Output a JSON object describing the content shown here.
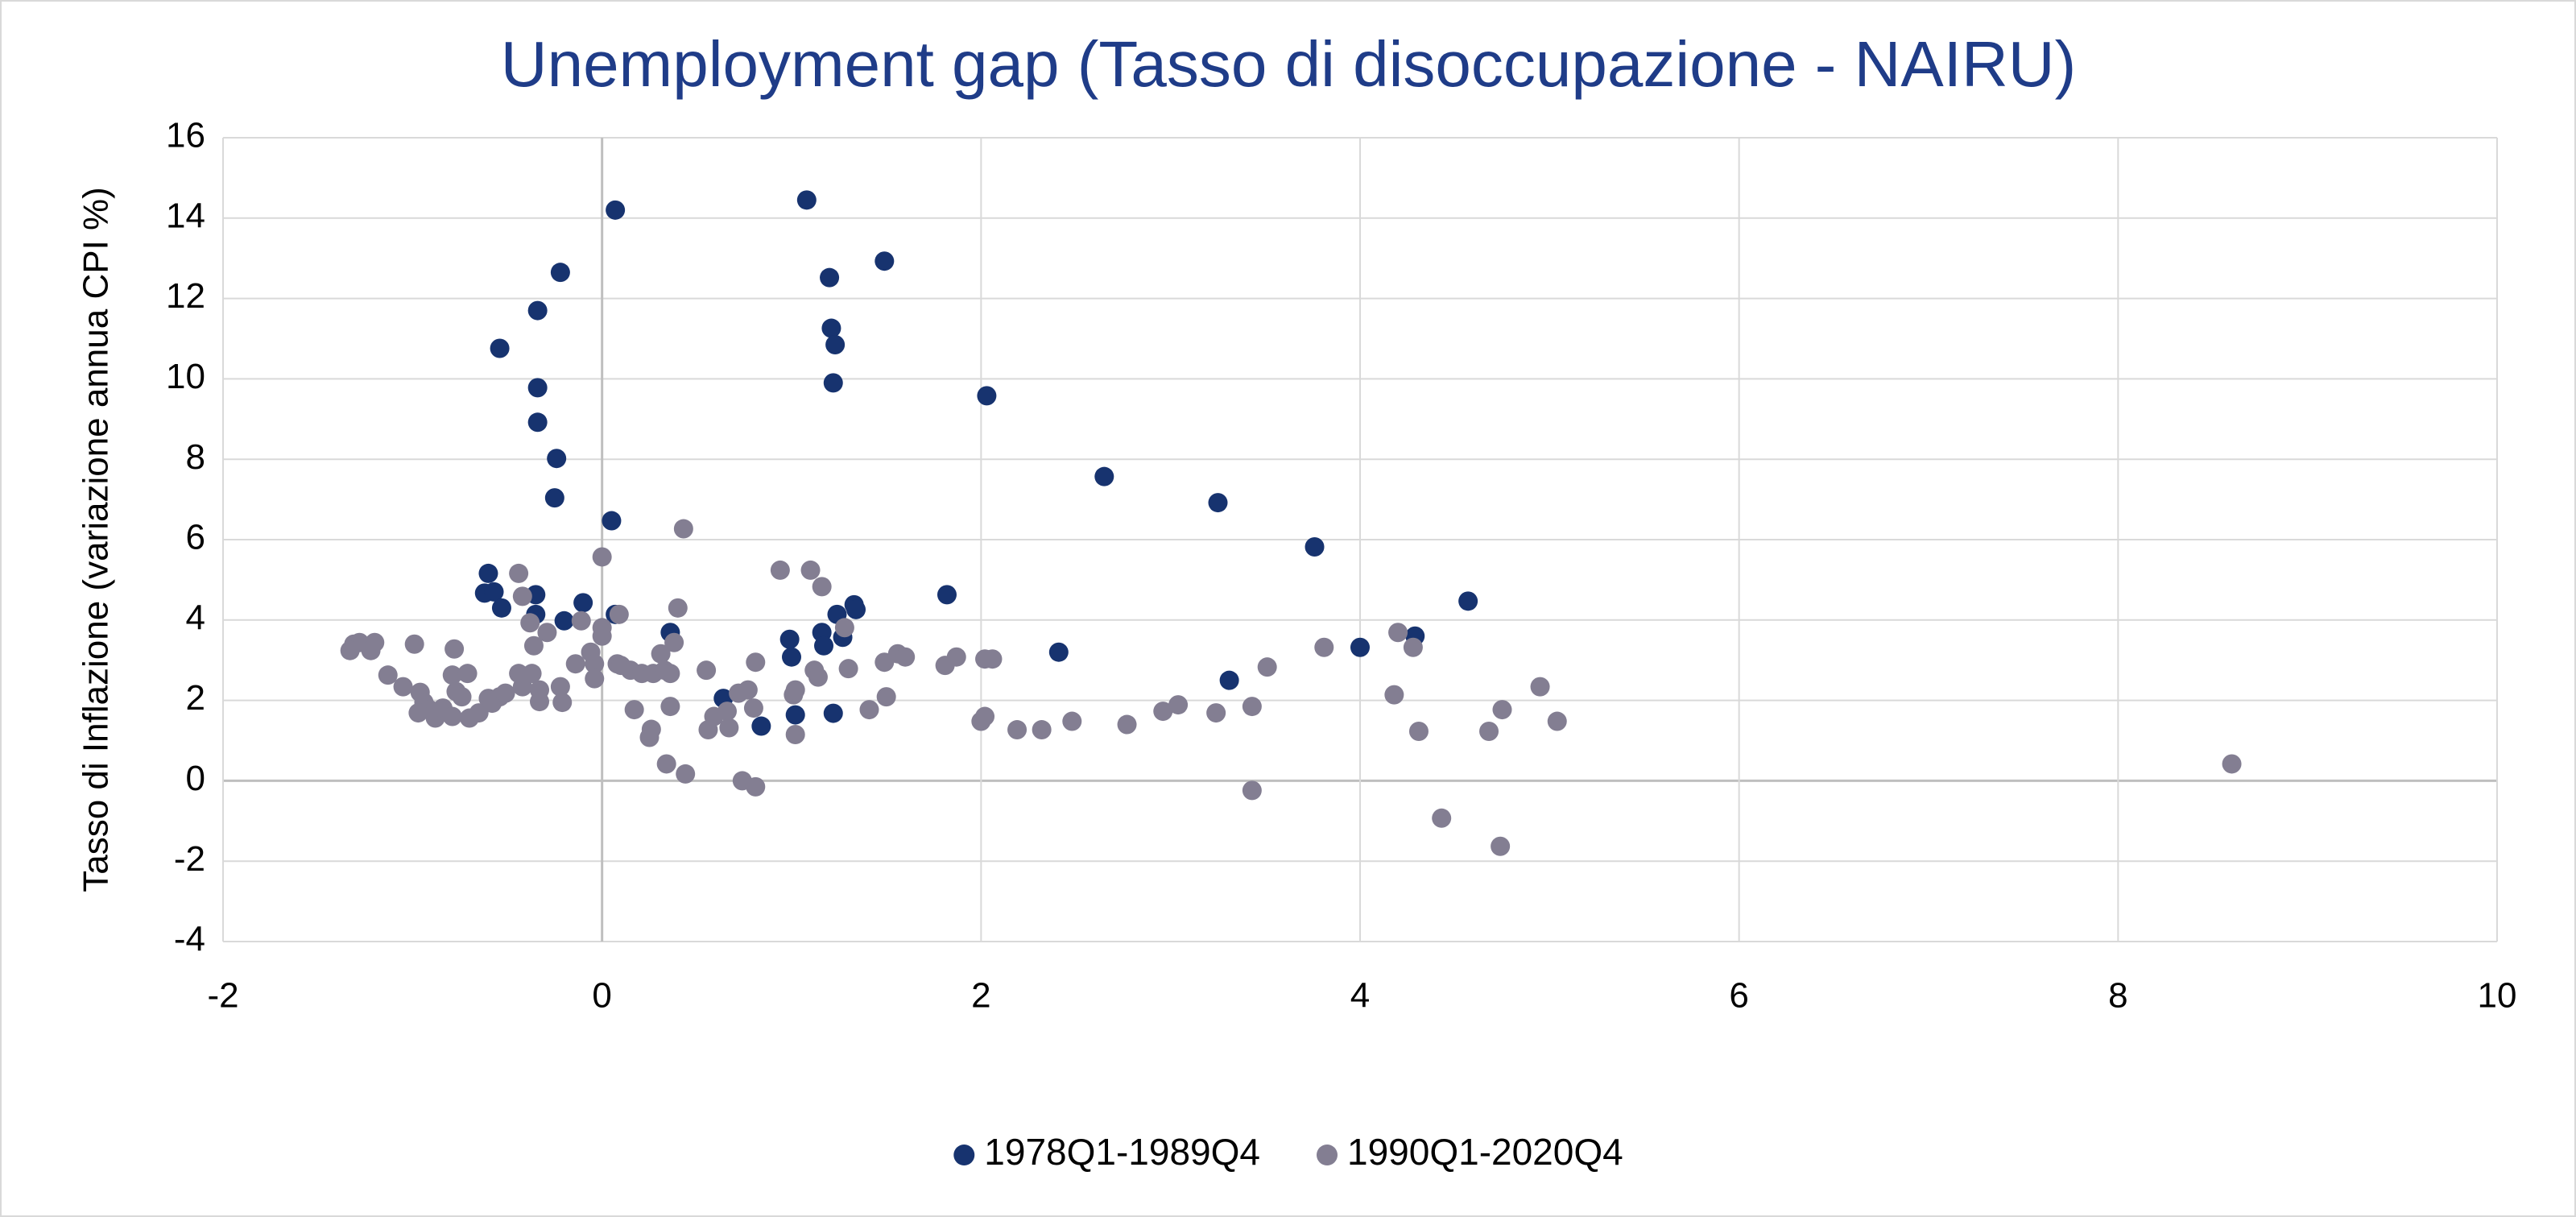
{
  "chart_data": {
    "type": "scatter",
    "title": "Unemployment gap (Tasso di disoccupazione - NAIRU)",
    "y_label": "Tasso di Inflazione (variazione annua CPI %)",
    "xlim": [
      -2,
      10
    ],
    "xticks": [
      -2,
      0,
      2,
      4,
      6,
      8,
      10
    ],
    "ylim": [
      -4,
      16
    ],
    "yticks": [
      -4,
      -2,
      0,
      2,
      4,
      6,
      8,
      10,
      12,
      14,
      16
    ],
    "grid": true,
    "legend": "bottom",
    "series": [
      {
        "name": "1978Q1-1989Q4",
        "color": "#17336f",
        "x": [
          0.07,
          1.08,
          -0.22,
          1.2,
          1.49,
          -0.34,
          1.21,
          1.23,
          -0.54,
          1.22,
          -0.34,
          2.03,
          -0.34,
          -0.24,
          -0.25,
          2.65,
          3.25,
          0.05,
          3.76,
          -0.6,
          1.82,
          4.57,
          -0.62,
          -0.57,
          -0.35,
          -0.1,
          -0.53,
          -0.35,
          0.07,
          1.33,
          1.34,
          1.24,
          -0.2,
          1.16,
          0.36,
          1.27,
          1.17,
          0.99,
          4.29,
          2.41,
          4.0,
          1.0,
          3.31,
          0.64,
          1.02,
          1.22,
          0.84
        ],
        "values": [
          14.2,
          14.45,
          12.65,
          12.52,
          12.93,
          11.7,
          11.26,
          10.85,
          10.76,
          9.9,
          9.78,
          9.58,
          8.92,
          8.02,
          7.04,
          7.57,
          6.92,
          6.47,
          5.82,
          5.16,
          4.63,
          4.47,
          4.67,
          4.7,
          4.63,
          4.43,
          4.3,
          4.14,
          4.14,
          4.38,
          4.26,
          4.14,
          3.98,
          3.69,
          3.69,
          3.57,
          3.36,
          3.52,
          3.6,
          3.2,
          3.32,
          3.08,
          2.5,
          2.05,
          1.64,
          1.68,
          1.36
        ]
      },
      {
        "name": "1990Q1-2020Q4",
        "color": "#837e92",
        "x": [
          -1.31,
          -1.28,
          -1.2,
          -1.22,
          -1.33,
          -1.13,
          -1.05,
          -0.99,
          -0.78,
          -0.96,
          -0.94,
          -0.91,
          -0.97,
          -0.88,
          -0.84,
          -0.79,
          -0.71,
          -0.77,
          -0.74,
          -0.7,
          -0.65,
          -0.79,
          -0.6,
          -0.58,
          -0.54,
          -0.51,
          -0.42,
          -0.44,
          -0.37,
          -0.44,
          -0.42,
          -0.38,
          -0.36,
          -0.29,
          -0.33,
          -0.33,
          -0.22,
          -0.21,
          -0.14,
          -0.11,
          -0.06,
          -0.04,
          -0.04,
          0.0,
          0.0,
          0.0,
          0.08,
          0.09,
          0.1,
          0.15,
          0.17,
          0.21,
          0.25,
          0.26,
          0.27,
          0.31,
          0.33,
          0.34,
          0.36,
          0.36,
          0.38,
          0.4,
          0.43,
          0.44,
          0.56,
          0.55,
          0.59,
          0.66,
          0.67,
          0.72,
          0.74,
          0.77,
          0.8,
          0.81,
          0.81,
          0.94,
          1.01,
          1.02,
          1.02,
          1.1,
          1.12,
          1.14,
          1.16,
          1.28,
          1.3,
          1.41,
          1.5,
          1.49,
          1.56,
          1.6,
          1.81,
          1.87,
          2.0,
          2.02,
          2.02,
          2.06,
          2.19,
          2.32,
          2.48,
          2.77,
          2.96,
          3.04,
          3.24,
          3.43,
          3.43,
          3.51,
          3.81,
          4.18,
          4.2,
          4.28,
          4.31,
          4.43,
          4.68,
          4.75,
          4.74,
          4.95,
          5.04,
          8.6
        ],
        "values": [
          3.4,
          3.44,
          3.44,
          3.24,
          3.24,
          2.63,
          2.34,
          3.4,
          3.28,
          2.2,
          1.95,
          1.77,
          1.69,
          1.56,
          1.81,
          2.63,
          2.67,
          2.22,
          2.09,
          1.56,
          1.69,
          1.6,
          2.05,
          1.93,
          2.09,
          2.18,
          2.34,
          2.67,
          2.67,
          5.16,
          4.59,
          3.93,
          3.36,
          3.69,
          2.26,
          1.97,
          2.34,
          1.95,
          2.91,
          3.98,
          3.2,
          2.91,
          2.54,
          3.81,
          3.6,
          5.57,
          2.91,
          4.14,
          2.87,
          2.75,
          1.77,
          2.67,
          1.08,
          1.28,
          2.67,
          3.16,
          2.75,
          0.42,
          2.67,
          1.85,
          3.44,
          4.3,
          6.27,
          0.17,
          1.27,
          2.75,
          1.6,
          1.73,
          1.32,
          2.18,
          0.0,
          2.26,
          1.81,
          2.95,
          -0.15,
          5.24,
          2.14,
          1.15,
          2.26,
          5.24,
          2.75,
          2.58,
          4.83,
          3.81,
          2.79,
          1.77,
          2.09,
          2.95,
          3.16,
          3.08,
          2.87,
          3.08,
          1.48,
          1.6,
          3.03,
          3.03,
          1.27,
          1.27,
          1.48,
          1.4,
          1.73,
          1.89,
          1.69,
          1.85,
          -0.24,
          2.83,
          3.32,
          2.14,
          3.69,
          3.32,
          1.23,
          -0.93,
          1.23,
          1.77,
          -1.63,
          2.34,
          1.48,
          0.42
        ]
      }
    ]
  }
}
